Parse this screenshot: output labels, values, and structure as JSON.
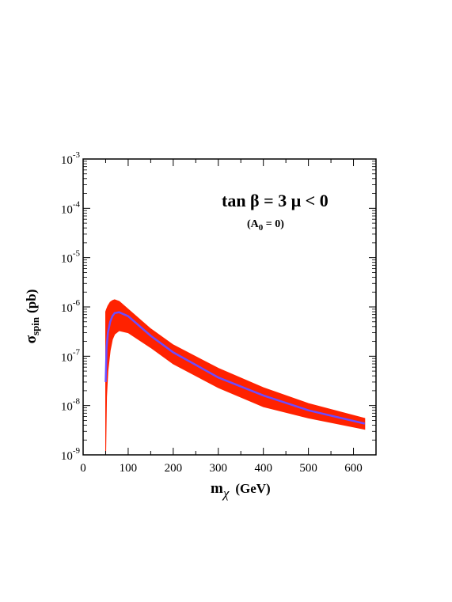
{
  "chart_data": {
    "type": "area",
    "xlabel": "m",
    "xlabel_sub": "χ",
    "xlabel_unit": "(GeV)",
    "ylabel": "σ",
    "ylabel_sub": "spin",
    "ylabel_unit": "(pb)",
    "annotation_main": "tan β = 3  μ < 0",
    "annotation_sub_open": "(A",
    "annotation_sub_index": "0",
    "annotation_sub_close": " = 0)",
    "x_scale": "linear",
    "y_scale": "log",
    "xlim": [
      0,
      650
    ],
    "ylim": [
      1e-09,
      0.001
    ],
    "x_ticks": [
      0,
      100,
      200,
      300,
      400,
      500,
      600
    ],
    "x_tick_labels": [
      "0",
      "100",
      "200",
      "300",
      "400",
      "500",
      "600"
    ],
    "y_ticks": [
      {
        "value": 1e-09,
        "base": "10",
        "exp": "-9"
      },
      {
        "value": 1e-08,
        "base": "10",
        "exp": "-8"
      },
      {
        "value": 1e-07,
        "base": "10",
        "exp": "-7"
      },
      {
        "value": 1e-06,
        "base": "10",
        "exp": "-6"
      },
      {
        "value": 1e-05,
        "base": "10",
        "exp": "-5"
      },
      {
        "value": 0.0001,
        "base": "10",
        "exp": "-4"
      },
      {
        "value": 0.001,
        "base": "10",
        "exp": "-3"
      }
    ],
    "grid": false,
    "band": {
      "color": "#ff2200",
      "x": [
        50,
        52,
        55,
        60,
        65,
        70,
        80,
        100,
        150,
        200,
        300,
        400,
        500,
        625
      ],
      "upper": [
        8e-07,
        9e-07,
        1.05e-06,
        1.25e-06,
        1.35e-06,
        1.4e-06,
        1.3e-06,
        9e-07,
        3.6e-07,
        1.7e-07,
        5.7e-08,
        2.3e-08,
        1.1e-08,
        5.5e-09
      ],
      "lower": [
        1e-09,
        1.5e-08,
        5e-08,
        1.3e-07,
        2.2e-07,
        2.8e-07,
        3.3e-07,
        3e-07,
        1.5e-07,
        7e-08,
        2.3e-08,
        9.5e-09,
        5.6e-09,
        3.3e-09
      ]
    },
    "series": [
      {
        "color": "#6b4cff",
        "x": [
          50,
          52,
          55,
          60,
          65,
          70,
          80,
          100,
          150,
          200,
          300,
          400,
          500,
          625
        ],
        "values": [
          3e-08,
          1.5e-07,
          3e-07,
          5e-07,
          6.5e-07,
          7.5e-07,
          7.8e-07,
          6.5e-07,
          2.6e-07,
          1.2e-07,
          3.7e-08,
          1.6e-08,
          8e-09,
          4.3e-09
        ]
      }
    ]
  }
}
